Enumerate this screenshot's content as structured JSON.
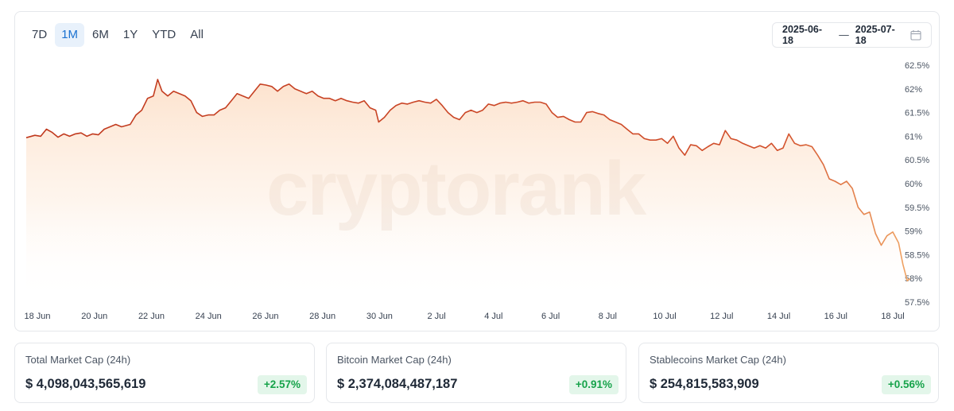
{
  "range_tabs": [
    {
      "label": "7D",
      "active": false
    },
    {
      "label": "1M",
      "active": true
    },
    {
      "label": "6M",
      "active": false
    },
    {
      "label": "1Y",
      "active": false
    },
    {
      "label": "YTD",
      "active": false
    },
    {
      "label": "All",
      "active": false
    }
  ],
  "date_range": {
    "start": "2025-06-18",
    "separator": "—",
    "end": "2025-07-18",
    "icon": "calendar-icon"
  },
  "watermark": "cryptorank",
  "colors": {
    "line_start": "#c0391e",
    "line_end": "#f0a565",
    "fill": "#fde9d8",
    "accent": "#1b72d1",
    "positive": "#16a34a"
  },
  "chart_data": {
    "type": "area",
    "title": "",
    "xlabel": "",
    "ylabel": "",
    "ylim": [
      57.5,
      62.5
    ],
    "y_ticks": [
      "62.5%",
      "62%",
      "61.5%",
      "61%",
      "60.5%",
      "60%",
      "59.5%",
      "59%",
      "58.5%",
      "58%",
      "57.5%"
    ],
    "x_ticks": [
      "18 Jun",
      "20 Jun",
      "22 Jun",
      "24 Jun",
      "26 Jun",
      "28 Jun",
      "30 Jun",
      "2 Jul",
      "4 Jul",
      "6 Jul",
      "8 Jul",
      "10 Jul",
      "12 Jul",
      "14 Jul",
      "16 Jul",
      "18 Jul"
    ],
    "x_range_days": [
      0,
      30
    ],
    "series": [
      {
        "points": [
          [
            0,
            60.97
          ],
          [
            0.3,
            61.02
          ],
          [
            0.5,
            61.0
          ],
          [
            0.7,
            61.15
          ],
          [
            0.9,
            61.08
          ],
          [
            1.1,
            60.98
          ],
          [
            1.3,
            61.05
          ],
          [
            1.5,
            61.0
          ],
          [
            1.7,
            61.05
          ],
          [
            1.9,
            61.07
          ],
          [
            2.1,
            61.0
          ],
          [
            2.3,
            61.05
          ],
          [
            2.5,
            61.03
          ],
          [
            2.7,
            61.15
          ],
          [
            2.9,
            61.2
          ],
          [
            3.1,
            61.25
          ],
          [
            3.3,
            61.2
          ],
          [
            3.6,
            61.25
          ],
          [
            3.8,
            61.45
          ],
          [
            4.0,
            61.55
          ],
          [
            4.2,
            61.8
          ],
          [
            4.4,
            61.85
          ],
          [
            4.55,
            62.2
          ],
          [
            4.7,
            61.95
          ],
          [
            4.9,
            61.85
          ],
          [
            5.1,
            61.95
          ],
          [
            5.3,
            61.9
          ],
          [
            5.5,
            61.85
          ],
          [
            5.7,
            61.75
          ],
          [
            5.9,
            61.5
          ],
          [
            6.1,
            61.42
          ],
          [
            6.3,
            61.45
          ],
          [
            6.5,
            61.45
          ],
          [
            6.7,
            61.55
          ],
          [
            6.9,
            61.6
          ],
          [
            7.1,
            61.75
          ],
          [
            7.3,
            61.9
          ],
          [
            7.5,
            61.85
          ],
          [
            7.7,
            61.8
          ],
          [
            7.9,
            61.95
          ],
          [
            8.1,
            62.1
          ],
          [
            8.3,
            62.08
          ],
          [
            8.5,
            62.05
          ],
          [
            8.7,
            61.95
          ],
          [
            8.9,
            62.05
          ],
          [
            9.1,
            62.1
          ],
          [
            9.3,
            62.0
          ],
          [
            9.5,
            61.95
          ],
          [
            9.7,
            61.9
          ],
          [
            9.9,
            61.95
          ],
          [
            10.1,
            61.85
          ],
          [
            10.3,
            61.8
          ],
          [
            10.5,
            61.8
          ],
          [
            10.7,
            61.75
          ],
          [
            10.9,
            61.8
          ],
          [
            11.1,
            61.75
          ],
          [
            11.3,
            61.72
          ],
          [
            11.5,
            61.7
          ],
          [
            11.7,
            61.75
          ],
          [
            11.9,
            61.6
          ],
          [
            12.1,
            61.55
          ],
          [
            12.2,
            61.3
          ],
          [
            12.4,
            61.4
          ],
          [
            12.6,
            61.55
          ],
          [
            12.8,
            61.65
          ],
          [
            13.0,
            61.7
          ],
          [
            13.2,
            61.68
          ],
          [
            13.4,
            61.72
          ],
          [
            13.6,
            61.75
          ],
          [
            13.8,
            61.72
          ],
          [
            14.0,
            61.7
          ],
          [
            14.2,
            61.78
          ],
          [
            14.4,
            61.65
          ],
          [
            14.6,
            61.5
          ],
          [
            14.8,
            61.4
          ],
          [
            15.0,
            61.35
          ],
          [
            15.2,
            61.5
          ],
          [
            15.4,
            61.55
          ],
          [
            15.6,
            61.5
          ],
          [
            15.8,
            61.55
          ],
          [
            16.0,
            61.68
          ],
          [
            16.2,
            61.65
          ],
          [
            16.4,
            61.7
          ],
          [
            16.6,
            61.72
          ],
          [
            16.8,
            61.7
          ],
          [
            17.0,
            61.72
          ],
          [
            17.2,
            61.75
          ],
          [
            17.4,
            61.7
          ],
          [
            17.6,
            61.72
          ],
          [
            17.8,
            61.72
          ],
          [
            18.0,
            61.68
          ],
          [
            18.2,
            61.5
          ],
          [
            18.4,
            61.4
          ],
          [
            18.6,
            61.42
          ],
          [
            18.8,
            61.35
          ],
          [
            19.0,
            61.3
          ],
          [
            19.2,
            61.3
          ],
          [
            19.4,
            61.5
          ],
          [
            19.6,
            61.52
          ],
          [
            19.8,
            61.48
          ],
          [
            20.0,
            61.45
          ],
          [
            20.2,
            61.35
          ],
          [
            20.4,
            61.3
          ],
          [
            20.6,
            61.25
          ],
          [
            20.8,
            61.15
          ],
          [
            21.0,
            61.05
          ],
          [
            21.2,
            61.05
          ],
          [
            21.4,
            60.95
          ],
          [
            21.6,
            60.92
          ],
          [
            21.8,
            60.92
          ],
          [
            22.0,
            60.95
          ],
          [
            22.2,
            60.85
          ],
          [
            22.4,
            61.0
          ],
          [
            22.6,
            60.75
          ],
          [
            22.8,
            60.6
          ],
          [
            23.0,
            60.82
          ],
          [
            23.2,
            60.8
          ],
          [
            23.4,
            60.7
          ],
          [
            23.6,
            60.78
          ],
          [
            23.8,
            60.85
          ],
          [
            24.0,
            60.82
          ],
          [
            24.2,
            61.12
          ],
          [
            24.4,
            60.95
          ],
          [
            24.6,
            60.92
          ],
          [
            24.8,
            60.85
          ],
          [
            25.0,
            60.8
          ],
          [
            25.2,
            60.75
          ],
          [
            25.4,
            60.8
          ],
          [
            25.6,
            60.75
          ],
          [
            25.8,
            60.85
          ],
          [
            26.0,
            60.7
          ],
          [
            26.2,
            60.75
          ],
          [
            26.4,
            61.05
          ],
          [
            26.6,
            60.85
          ],
          [
            26.8,
            60.8
          ],
          [
            27.0,
            60.82
          ],
          [
            27.2,
            60.78
          ],
          [
            27.4,
            60.6
          ],
          [
            27.6,
            60.4
          ],
          [
            27.8,
            60.1
          ],
          [
            28.0,
            60.05
          ],
          [
            28.2,
            59.98
          ],
          [
            28.4,
            60.05
          ],
          [
            28.6,
            59.9
          ],
          [
            28.8,
            59.5
          ],
          [
            29.0,
            59.35
          ],
          [
            29.2,
            59.4
          ],
          [
            29.4,
            58.95
          ],
          [
            29.6,
            58.7
          ],
          [
            29.8,
            58.9
          ],
          [
            30.0,
            58.98
          ],
          [
            30.2,
            58.75
          ],
          [
            30.35,
            58.3
          ],
          [
            30.5,
            57.95
          ],
          [
            30.6,
            58.0
          ]
        ]
      }
    ],
    "grid": false,
    "legend": "none"
  },
  "stats": [
    {
      "label": "Total Market Cap (24h)",
      "value": "$ 4,098,043,565,619",
      "change": "+2.57%"
    },
    {
      "label": "Bitcoin Market Cap (24h)",
      "value": "$ 2,374,084,487,187",
      "change": "+0.91%"
    },
    {
      "label": "Stablecoins Market Cap (24h)",
      "value": "$ 254,815,583,909",
      "change": "+0.56%"
    }
  ]
}
